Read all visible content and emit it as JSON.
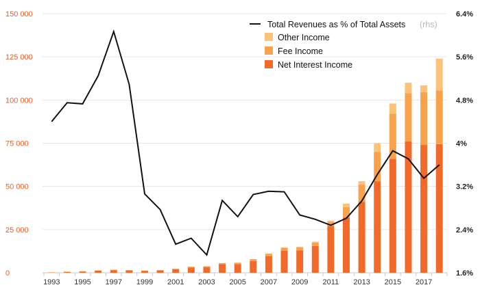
{
  "chart_data": {
    "type": "bar",
    "title": "",
    "xlabel": "",
    "ylabel": "",
    "stacked": true,
    "grid": true,
    "legend_position": "top-right",
    "categories": [
      "1993",
      "1994",
      "1995",
      "1996",
      "1997",
      "1998",
      "1999",
      "2000",
      "2001",
      "2002",
      "2003",
      "2004",
      "2005",
      "2006",
      "2007",
      "2008",
      "2009",
      "2010",
      "2011",
      "2012",
      "2013",
      "2014",
      "2015",
      "2016",
      "2017",
      "2018"
    ],
    "x_tick_labels": [
      "1993",
      "1995",
      "1997",
      "1999",
      "2001",
      "2003",
      "2005",
      "2007",
      "2009",
      "2011",
      "2013",
      "2015",
      "2017"
    ],
    "ylim": [
      0,
      150000
    ],
    "y_ticks": [
      0,
      25000,
      50000,
      75000,
      100000,
      125000,
      150000
    ],
    "y_tick_labels": [
      "0",
      "25 000",
      "50 000",
      "75 000",
      "100 000",
      "125 000",
      "150 000"
    ],
    "ylim_right": [
      1.6,
      6.4
    ],
    "y_ticks_right": [
      1.6,
      2.4,
      3.2,
      4.0,
      4.8,
      5.6,
      6.4
    ],
    "y_tick_labels_right": [
      "1.6%",
      "2.4%",
      "3.2%",
      "4%",
      "4.8%",
      "5.6%",
      "6.4%"
    ],
    "series": [
      {
        "name": "Net Interest Income",
        "kind": "bar",
        "color": "#f26a2a",
        "values": [
          200,
          500,
          700,
          1200,
          1500,
          1300,
          1000,
          1300,
          2000,
          3000,
          3300,
          5000,
          5000,
          6800,
          9500,
          12800,
          13000,
          15500,
          27000,
          32000,
          41000,
          53000,
          66000,
          76000,
          74000,
          74500
        ]
      },
      {
        "name": "Fee Income",
        "kind": "bar",
        "color": "#f8a24c",
        "values": [
          50,
          100,
          150,
          200,
          300,
          300,
          300,
          300,
          300,
          500,
          500,
          600,
          800,
          1100,
          1500,
          1600,
          1700,
          2000,
          2500,
          6000,
          10000,
          17000,
          26000,
          28000,
          30500,
          31000
        ]
      },
      {
        "name": "Other Income",
        "kind": "bar",
        "color": "#fbc27a",
        "values": [
          0,
          0,
          0,
          0,
          0,
          0,
          0,
          0,
          0,
          0,
          0,
          0,
          0,
          0,
          200,
          300,
          300,
          500,
          700,
          2000,
          2000,
          5000,
          6000,
          6000,
          4000,
          18500
        ]
      },
      {
        "name": "Total Revenues as % of Total Assets",
        "legend_note": "(rhs)",
        "kind": "line",
        "axis": "right",
        "color": "#111111",
        "values": [
          4.4,
          4.75,
          4.73,
          5.25,
          6.07,
          5.09,
          3.06,
          2.77,
          2.13,
          2.24,
          1.93,
          2.94,
          2.64,
          3.05,
          3.11,
          3.1,
          2.67,
          2.59,
          2.48,
          2.61,
          2.93,
          3.42,
          3.86,
          3.71,
          3.35,
          3.6
        ]
      }
    ]
  }
}
